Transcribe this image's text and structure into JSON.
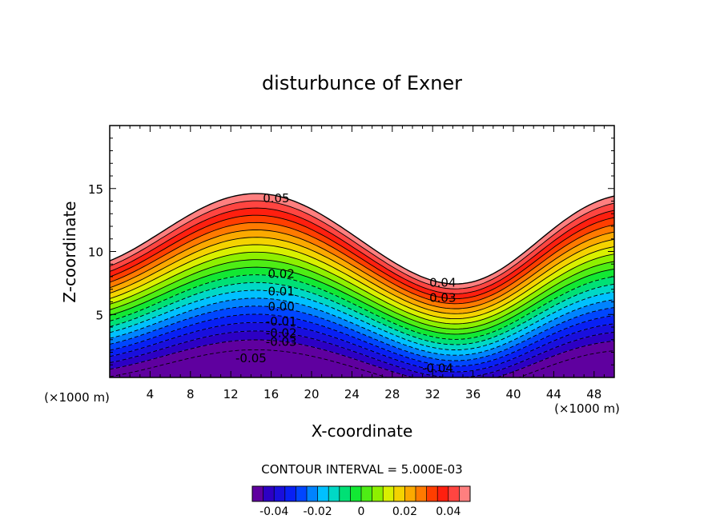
{
  "chart_data": {
    "type": "contour",
    "title": "disturbunce of Exner",
    "xlabel": "X-coordinate",
    "ylabel": "Z-coordinate",
    "x_unit": "(×1000 m)",
    "x_unit_right": "(×1000 m)",
    "xlim": [
      0,
      50
    ],
    "ylim": [
      0,
      20
    ],
    "x_ticks": [
      4,
      8,
      12,
      16,
      20,
      24,
      28,
      32,
      36,
      40,
      44,
      48
    ],
    "y_ticks": [
      5,
      10,
      15
    ],
    "contour_interval_text": "CONTOUR INTERVAL = 5.000E-03",
    "contour_interval": 0.005,
    "value_range": [
      -0.05,
      0.05
    ],
    "contour_labels": [
      {
        "text": "0.05",
        "x": 16.5,
        "z": 14.2
      },
      {
        "text": "0.04",
        "x": 33.0,
        "z": 7.5
      },
      {
        "text": "0.03",
        "x": 33.0,
        "z": 6.3
      },
      {
        "text": "0.02",
        "x": 17.0,
        "z": 8.2
      },
      {
        "text": "0.01",
        "x": 17.0,
        "z": 6.8
      },
      {
        "text": "0.00",
        "x": 17.0,
        "z": 5.6
      },
      {
        "text": "-0.01",
        "x": 17.0,
        "z": 4.4
      },
      {
        "text": "-0.02",
        "x": 17.0,
        "z": 3.5
      },
      {
        "text": "-0.03",
        "x": 17.0,
        "z": 2.8
      },
      {
        "text": "-0.05",
        "x": 14.0,
        "z": 1.5
      },
      {
        "text": "-0.04",
        "x": 32.5,
        "z": 0.7
      }
    ],
    "colorbar": {
      "ticks": [
        "-0.04",
        "-0.02",
        "0",
        "0.02",
        "0.04"
      ],
      "tick_values": [
        -0.04,
        -0.02,
        0,
        0.02,
        0.04
      ]
    }
  }
}
